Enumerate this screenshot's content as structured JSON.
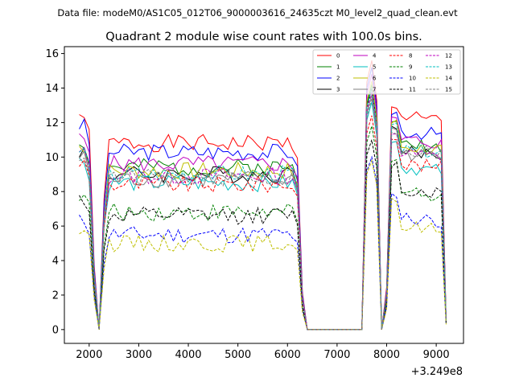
{
  "figure": {
    "suptitle": "Data file: modeM0/AS1C05_012T06_9000003616_24635czt M0_level2_quad_clean.evt",
    "axis_offset": "+3.249e8"
  },
  "chart_data": {
    "type": "line",
    "title": "Quadrant 2 module wise count rates with 100.0s bins.",
    "xlabel": "",
    "ylabel": "",
    "xlim": [
      1500,
      9550
    ],
    "ylim": [
      -0.8,
      16.4
    ],
    "xticks": [
      2000,
      3000,
      4000,
      5000,
      6000,
      7000,
      8000,
      9000
    ],
    "yticks": [
      0,
      2,
      4,
      6,
      8,
      10,
      12,
      14,
      16
    ],
    "legend_position": "top-right",
    "x_note": "x values are offsets from 3.249e8; bins 100 s wide from 1800 to 6200, gap near zero from 6400 to 7500, then 7600-9200",
    "x": [
      1800,
      1900,
      2000,
      2100,
      2200,
      2300,
      2400,
      2500,
      2600,
      2700,
      2800,
      2900,
      3000,
      3100,
      3200,
      3300,
      3400,
      3500,
      3600,
      3700,
      3800,
      3900,
      4000,
      4100,
      4200,
      4300,
      4400,
      4500,
      4600,
      4700,
      4800,
      4900,
      5000,
      5100,
      5200,
      5300,
      5400,
      5500,
      5600,
      5700,
      5800,
      5900,
      6000,
      6100,
      6200,
      6300,
      6400,
      6500,
      6600,
      6700,
      6800,
      6900,
      7000,
      7100,
      7200,
      7300,
      7400,
      7500,
      7600,
      7700,
      7800,
      7900,
      8000,
      8100,
      8200,
      8300,
      8400,
      8500,
      8600,
      8700,
      8800,
      8900,
      9000,
      9100,
      9200
    ],
    "series": [
      {
        "name": "0",
        "color": "#ff0000",
        "dash": "solid",
        "level": 10.8,
        "peak": 15.6,
        "p2": 12.9,
        "level2": 12.3,
        "seed": 1
      },
      {
        "name": "1",
        "color": "#008000",
        "dash": "solid",
        "level": 9.4,
        "peak": 14.2,
        "p2": 11.9,
        "level2": 10.8,
        "seed": 2
      },
      {
        "name": "2",
        "color": "#0000ff",
        "dash": "solid",
        "level": 10.3,
        "peak": 15.2,
        "p2": 12.6,
        "level2": 11.5,
        "seed": 3
      },
      {
        "name": "3",
        "color": "#000000",
        "dash": "solid",
        "level": 9.0,
        "peak": 14.0,
        "p2": 11.8,
        "level2": 10.3,
        "seed": 4
      },
      {
        "name": "4",
        "color": "#bf00bf",
        "dash": "solid",
        "level": 9.6,
        "peak": 14.8,
        "p2": 12.2,
        "level2": 11.0,
        "seed": 5
      },
      {
        "name": "5",
        "color": "#00bfbf",
        "dash": "solid",
        "level": 8.5,
        "peak": 13.2,
        "p2": 11.0,
        "level2": 9.4,
        "seed": 6
      },
      {
        "name": "6",
        "color": "#bfbf00",
        "dash": "solid",
        "level": 9.2,
        "peak": 14.4,
        "p2": 12.0,
        "level2": 10.6,
        "seed": 7
      },
      {
        "name": "7",
        "color": "#808080",
        "dash": "solid",
        "level": 8.7,
        "peak": 13.6,
        "p2": 11.6,
        "level2": 10.2,
        "seed": 8
      },
      {
        "name": "8",
        "color": "#ff0000",
        "dash": "dashed",
        "level": 8.4,
        "peak": 12.4,
        "p2": 11.2,
        "level2": 9.6,
        "seed": 9
      },
      {
        "name": "9",
        "color": "#008000",
        "dash": "dashed",
        "level": 6.8,
        "peak": 11.8,
        "p2": 9.8,
        "level2": 8.0,
        "seed": 10
      },
      {
        "name": "10",
        "color": "#0000ff",
        "dash": "dashed",
        "level": 5.5,
        "peak": 10.0,
        "p2": 7.8,
        "level2": 6.5,
        "seed": 11
      },
      {
        "name": "11",
        "color": "#000000",
        "dash": "dashed",
        "level": 6.6,
        "peak": 11.0,
        "p2": 9.6,
        "level2": 8.1,
        "seed": 12
      },
      {
        "name": "12",
        "color": "#bf00bf",
        "dash": "dashed",
        "level": 8.9,
        "peak": 13.8,
        "p2": 11.4,
        "level2": 10.2,
        "seed": 13
      },
      {
        "name": "13",
        "color": "#00bfbf",
        "dash": "dashed",
        "level": 9.0,
        "peak": 14.0,
        "p2": 11.8,
        "level2": 10.4,
        "seed": 14
      },
      {
        "name": "14",
        "color": "#bfbf00",
        "dash": "dashed",
        "level": 5.0,
        "peak": 9.8,
        "p2": 7.4,
        "level2": 6.0,
        "seed": 15
      },
      {
        "name": "15",
        "color": "#808080",
        "dash": "dashed",
        "level": 8.8,
        "peak": 13.4,
        "p2": 11.5,
        "level2": 10.4,
        "seed": 16
      }
    ]
  }
}
